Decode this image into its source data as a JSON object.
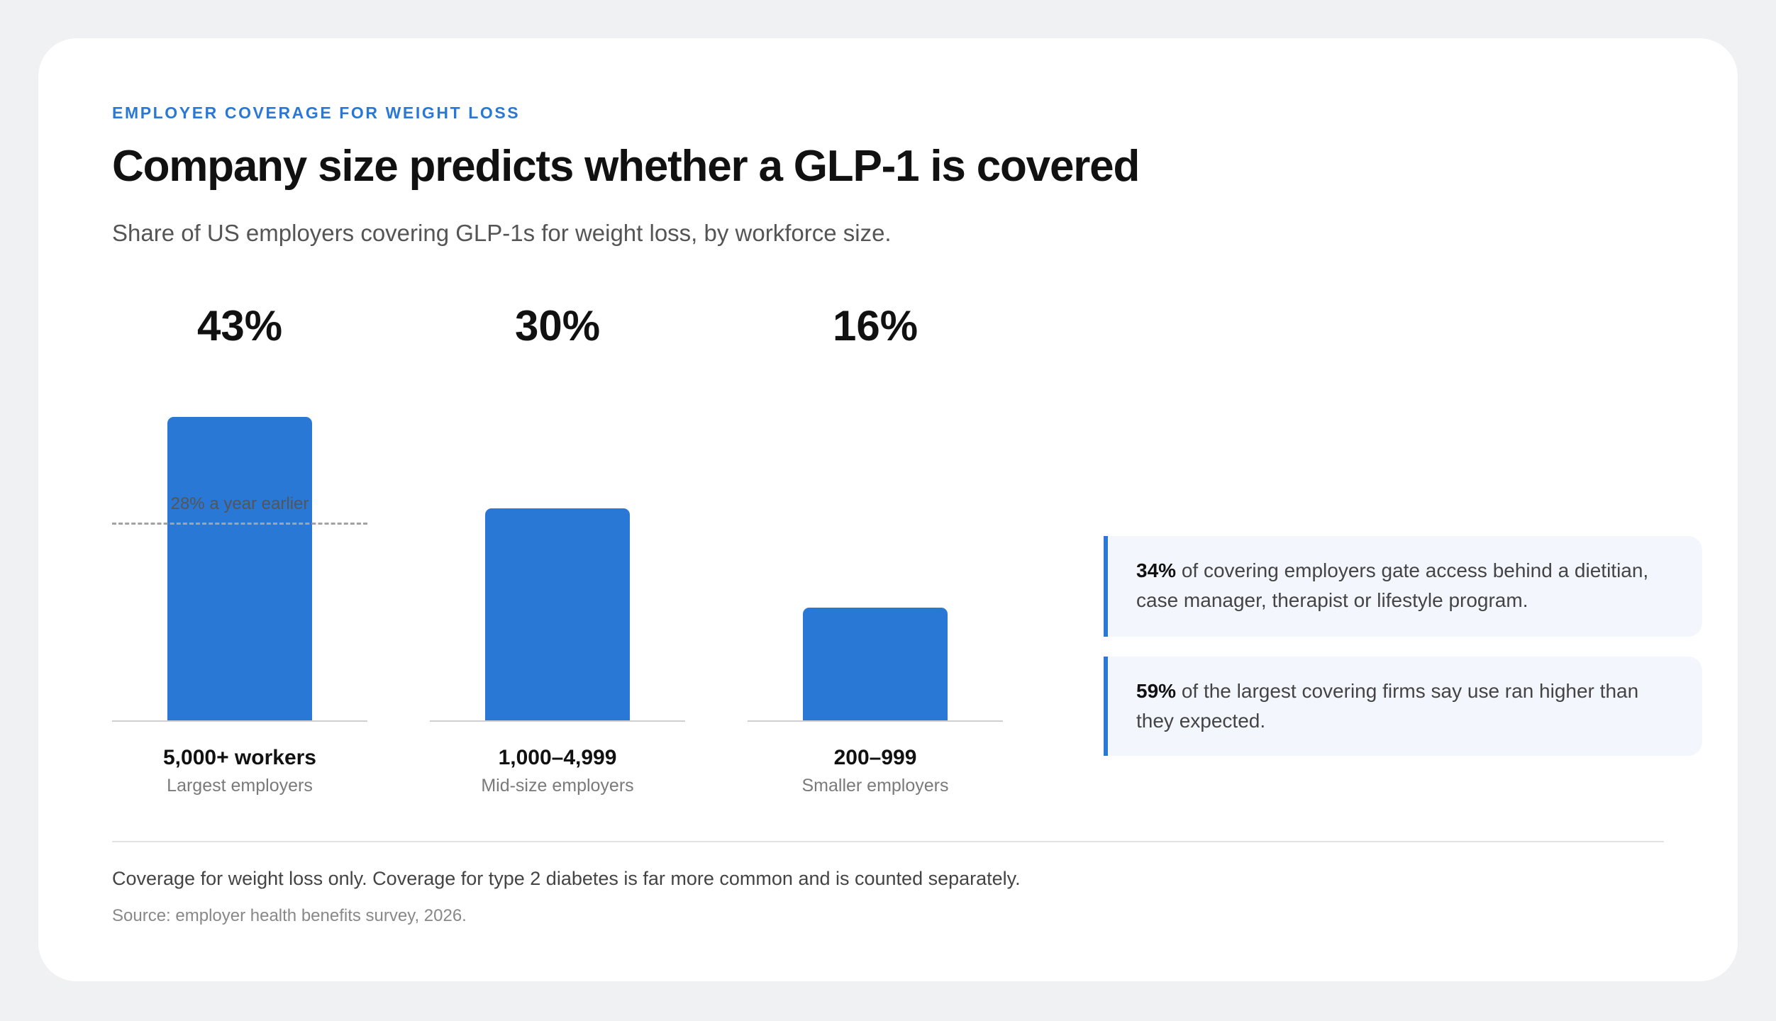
{
  "header": {
    "eyebrow": "EMPLOYER COVERAGE FOR WEIGHT LOSS",
    "title": "Company size predicts whether a GLP-1 is covered",
    "subtitle": "Share of US employers covering GLP-1s for weight loss, by workforce size."
  },
  "chart_data": {
    "type": "bar",
    "title": "Company size predicts whether a GLP-1 is covered",
    "subtitle": "Share of US employers covering GLP-1s for weight loss, by workforce size.",
    "categories": [
      "5,000+ workers",
      "1,000–4,999",
      "200–999"
    ],
    "category_subtitles": [
      "Largest employers",
      "Mid-size employers",
      "Smaller employers"
    ],
    "values": [
      43,
      30,
      16
    ],
    "value_labels": [
      "43%",
      "30%",
      "16%"
    ],
    "unit": "%",
    "ylim": [
      0,
      43
    ],
    "grid": false,
    "reference": {
      "category_index": 0,
      "value": 28,
      "label": "28% a year earlier"
    },
    "bar_color": "#2a78d6"
  },
  "callouts": [
    {
      "stat": "34%",
      "text": " of covering employers gate access behind a dietitian, case manager, therapist or lifestyle program."
    },
    {
      "stat": "59%",
      "text": " of the largest covering firms say use ran higher than they expected."
    }
  ],
  "footer": {
    "note": "Coverage for weight loss only. Coverage for type 2 diabetes is far more common and is counted separately.",
    "source": "Source: employer health benefits survey, 2026."
  },
  "colors": {
    "accent": "#2a78d6",
    "background": "#f0f1f3",
    "card": "#ffffff",
    "callout_bg": "#f3f7fd"
  }
}
